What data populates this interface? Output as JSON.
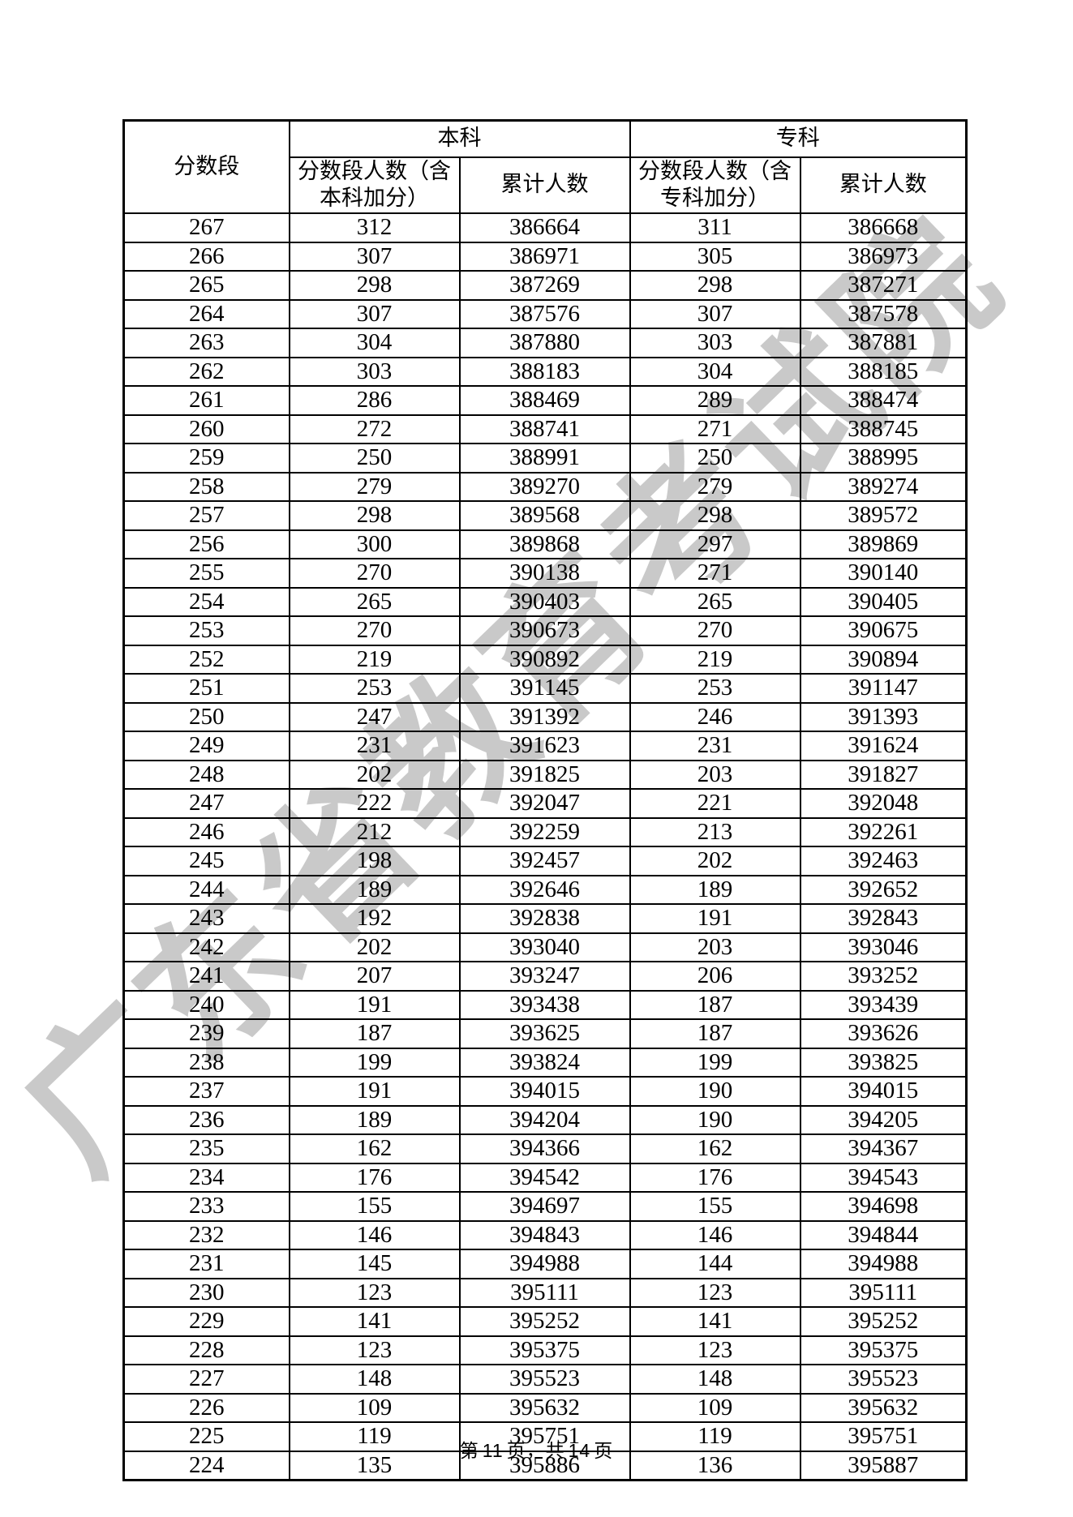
{
  "page": {
    "watermark": "广东省教育考试院",
    "footer": {
      "prefix": "第",
      "page_number": "11",
      "middle": "页，共",
      "total_pages": "14",
      "suffix": "页"
    }
  },
  "table": {
    "header": {
      "score_segment": "分数段",
      "benke_group": "本科",
      "zhuanke_group": "专科",
      "benke_count": "分数段人数（含本科加分）",
      "benke_cumulative": "累计人数",
      "zhuanke_count": "分数段人数（含专科加分）",
      "zhuanke_cumulative": "累计人数"
    },
    "rows": [
      [
        267,
        312,
        386664,
        311,
        386668
      ],
      [
        266,
        307,
        386971,
        305,
        386973
      ],
      [
        265,
        298,
        387269,
        298,
        387271
      ],
      [
        264,
        307,
        387576,
        307,
        387578
      ],
      [
        263,
        304,
        387880,
        303,
        387881
      ],
      [
        262,
        303,
        388183,
        304,
        388185
      ],
      [
        261,
        286,
        388469,
        289,
        388474
      ],
      [
        260,
        272,
        388741,
        271,
        388745
      ],
      [
        259,
        250,
        388991,
        250,
        388995
      ],
      [
        258,
        279,
        389270,
        279,
        389274
      ],
      [
        257,
        298,
        389568,
        298,
        389572
      ],
      [
        256,
        300,
        389868,
        297,
        389869
      ],
      [
        255,
        270,
        390138,
        271,
        390140
      ],
      [
        254,
        265,
        390403,
        265,
        390405
      ],
      [
        253,
        270,
        390673,
        270,
        390675
      ],
      [
        252,
        219,
        390892,
        219,
        390894
      ],
      [
        251,
        253,
        391145,
        253,
        391147
      ],
      [
        250,
        247,
        391392,
        246,
        391393
      ],
      [
        249,
        231,
        391623,
        231,
        391624
      ],
      [
        248,
        202,
        391825,
        203,
        391827
      ],
      [
        247,
        222,
        392047,
        221,
        392048
      ],
      [
        246,
        212,
        392259,
        213,
        392261
      ],
      [
        245,
        198,
        392457,
        202,
        392463
      ],
      [
        244,
        189,
        392646,
        189,
        392652
      ],
      [
        243,
        192,
        392838,
        191,
        392843
      ],
      [
        242,
        202,
        393040,
        203,
        393046
      ],
      [
        241,
        207,
        393247,
        206,
        393252
      ],
      [
        240,
        191,
        393438,
        187,
        393439
      ],
      [
        239,
        187,
        393625,
        187,
        393626
      ],
      [
        238,
        199,
        393824,
        199,
        393825
      ],
      [
        237,
        191,
        394015,
        190,
        394015
      ],
      [
        236,
        189,
        394204,
        190,
        394205
      ],
      [
        235,
        162,
        394366,
        162,
        394367
      ],
      [
        234,
        176,
        394542,
        176,
        394543
      ],
      [
        233,
        155,
        394697,
        155,
        394698
      ],
      [
        232,
        146,
        394843,
        146,
        394844
      ],
      [
        231,
        145,
        394988,
        144,
        394988
      ],
      [
        230,
        123,
        395111,
        123,
        395111
      ],
      [
        229,
        141,
        395252,
        141,
        395252
      ],
      [
        228,
        123,
        395375,
        123,
        395375
      ],
      [
        227,
        148,
        395523,
        148,
        395523
      ],
      [
        226,
        109,
        395632,
        109,
        395632
      ],
      [
        225,
        119,
        395751,
        119,
        395751
      ],
      [
        224,
        135,
        395886,
        136,
        395887
      ]
    ]
  }
}
